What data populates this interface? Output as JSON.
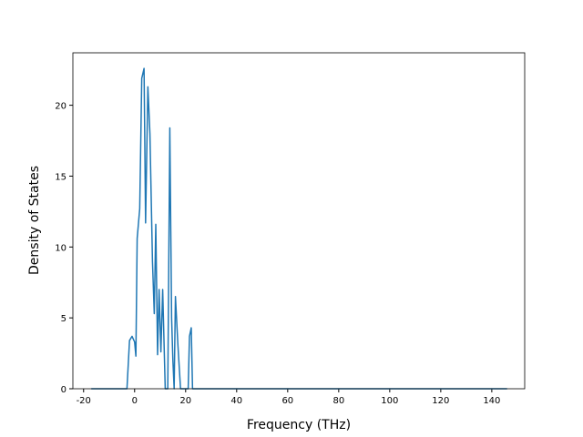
{
  "chart_data": {
    "type": "line",
    "xlabel": "Frequency (THz)",
    "ylabel": "Density of States",
    "x": [
      -17,
      -3,
      -2,
      -1,
      0,
      0.5,
      1,
      2,
      2.8,
      3.7,
      4.3,
      5.2,
      6,
      7,
      7.7,
      8.3,
      9,
      9.6,
      10.3,
      11,
      12,
      13,
      13.8,
      14.5,
      15,
      15.5,
      16,
      17,
      18,
      21,
      21.5,
      22.2,
      22.7,
      146
    ],
    "series": [
      {
        "name": "DOS",
        "color": "#1f77b4",
        "values": [
          0,
          0,
          3.4,
          3.7,
          3.3,
          2.3,
          10.6,
          12.7,
          21.9,
          22.6,
          11.7,
          21.3,
          18,
          9,
          5.3,
          11.6,
          2.4,
          7,
          2.6,
          7,
          0,
          0,
          18.4,
          5,
          2,
          0,
          6.5,
          3,
          0,
          0,
          3.7,
          4.3,
          0,
          0
        ]
      }
    ],
    "xlim": [
      -24.2,
      152.9
    ],
    "ylim": [
      0,
      23.7
    ],
    "xticks": [
      -20,
      0,
      20,
      40,
      60,
      80,
      100,
      120,
      140
    ],
    "yticks": [
      0,
      5,
      10,
      15,
      20
    ],
    "grid": false
  }
}
